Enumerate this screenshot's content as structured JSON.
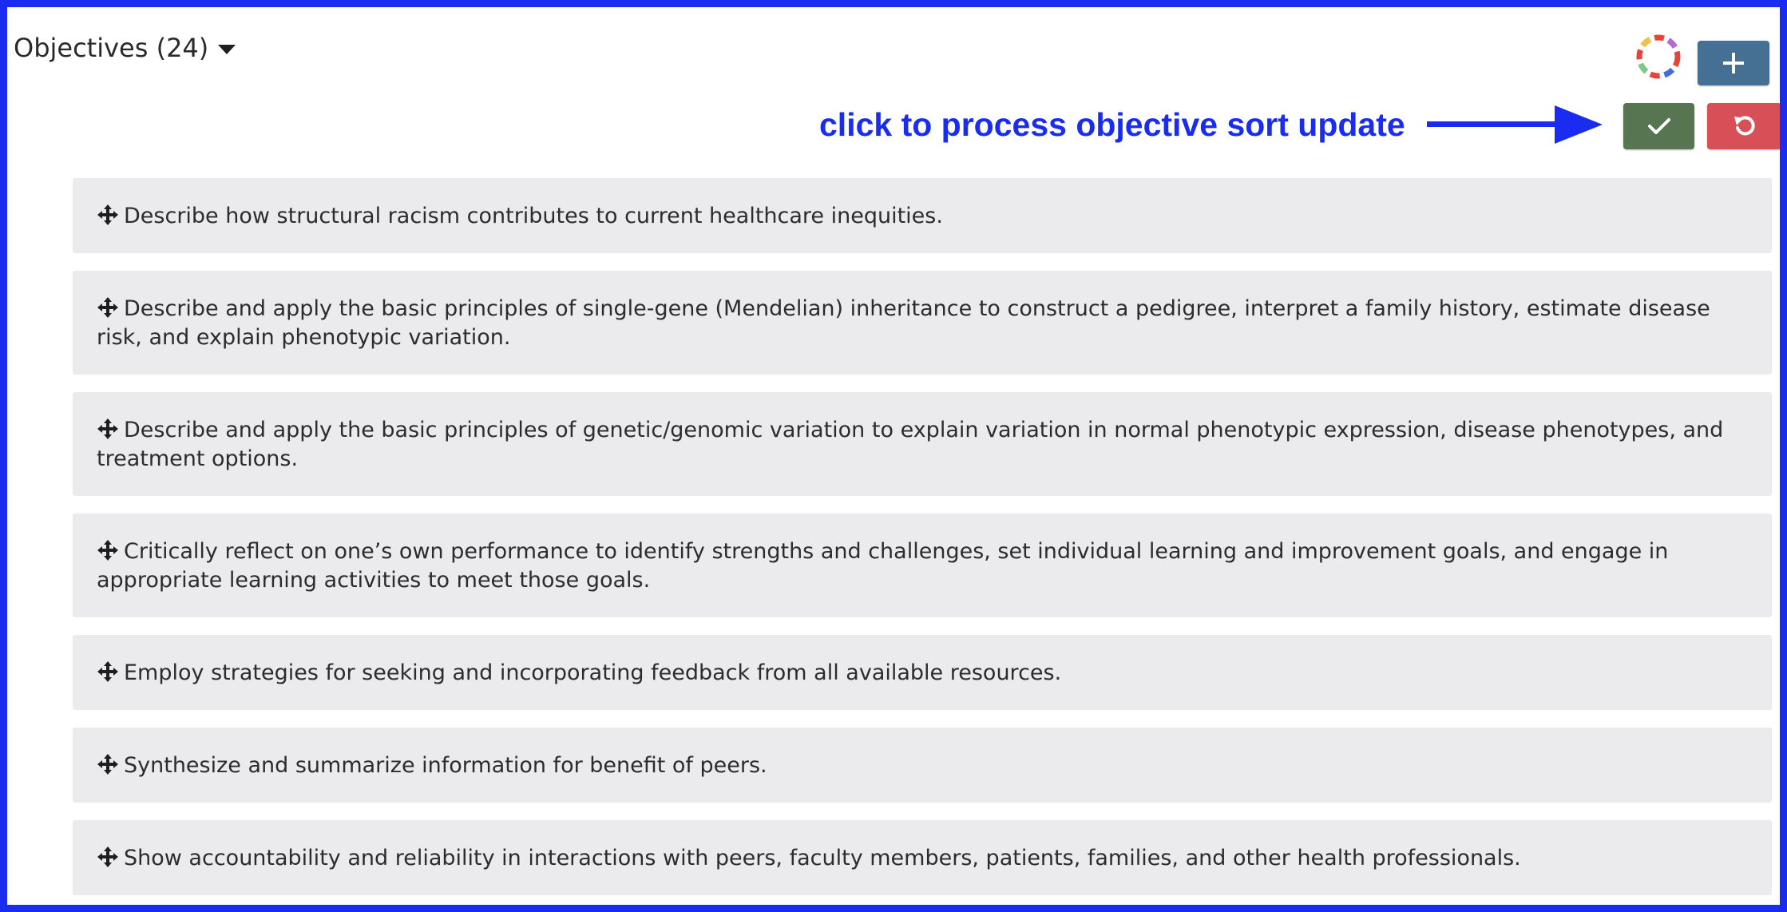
{
  "header": {
    "title": "Objectives (24)"
  },
  "annotation": {
    "text": "click to process objective sort update",
    "color": "#1a2cf0"
  },
  "buttons": {
    "add": {
      "icon": "plus-icon",
      "color": "#467093"
    },
    "confirm": {
      "icon": "check-icon",
      "color": "#587552"
    },
    "reset": {
      "icon": "undo-icon",
      "color": "#d75057"
    }
  },
  "objectives": [
    {
      "text": "Describe how structural racism contributes to current healthcare inequities."
    },
    {
      "text": "Describe and apply the basic principles of single-gene (Mendelian) inheritance to construct a pedigree, interpret a family history, estimate disease risk, and explain phenotypic variation."
    },
    {
      "text": "Describe and apply the basic principles of genetic/genomic variation to explain variation in normal phenotypic expression, disease phenotypes, and treatment options."
    },
    {
      "text": "Critically reflect on one’s own performance to identify strengths and challenges, set individual learning and improvement goals, and engage in appropriate learning activities to meet those goals."
    },
    {
      "text": "Employ strategies for seeking and incorporating feedback from all available resources."
    },
    {
      "text": "Synthesize and summarize information for benefit of peers."
    },
    {
      "text": "Show accountability and reliability in interactions with peers, faculty members, patients, families, and other health professionals."
    }
  ]
}
